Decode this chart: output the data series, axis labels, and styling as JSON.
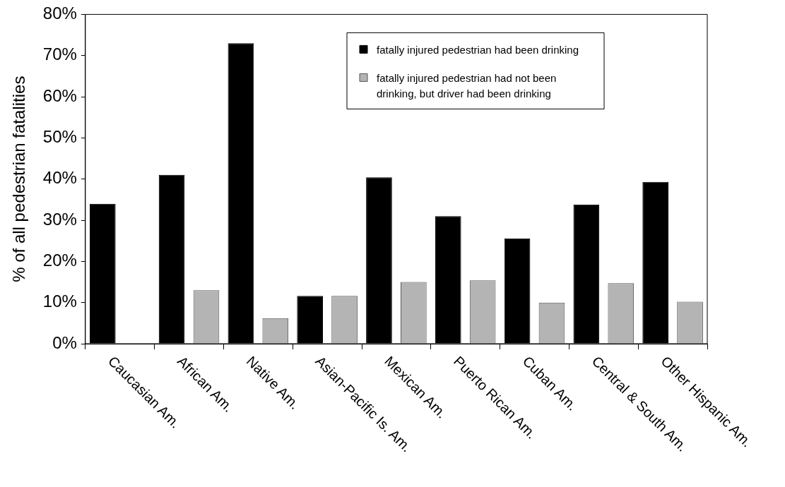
{
  "chart_data": {
    "type": "bar",
    "ylabel": "% of all pedestrian fatalities",
    "categories": [
      "Caucasian Am.",
      "African Am.",
      "Native Am.",
      "Asian-Pacific Is. Am.",
      "Mexican Am.",
      "Puerto Rican Am.",
      "Cuban Am.",
      "Central & South Am.",
      "Other Hispanic Am."
    ],
    "series": [
      {
        "name": "fatally injured pedestrian had been drinking",
        "color": "#000000",
        "values": [
          34,
          41,
          73,
          11.6,
          40.4,
          31,
          25.6,
          33.8,
          39.3
        ]
      },
      {
        "name": "fatally injured pedestrian had not been drinking, but driver had been drinking",
        "color": "#b4b4b4",
        "values": [
          0,
          13,
          6.2,
          11.6,
          15,
          15.4,
          10,
          14.7,
          10.2
        ]
      }
    ],
    "ylim": [
      0,
      80
    ],
    "yticks": [
      {
        "value": 0,
        "label": "0%"
      },
      {
        "value": 10,
        "label": "10%"
      },
      {
        "value": 20,
        "label": "20%"
      },
      {
        "value": 30,
        "label": "30%"
      },
      {
        "value": 40,
        "label": "40%"
      },
      {
        "value": 50,
        "label": "50%"
      },
      {
        "value": 60,
        "label": "60%"
      },
      {
        "value": 70,
        "label": "70%"
      },
      {
        "value": 80,
        "label": "80%"
      }
    ],
    "grid": false,
    "legend": "top right"
  }
}
